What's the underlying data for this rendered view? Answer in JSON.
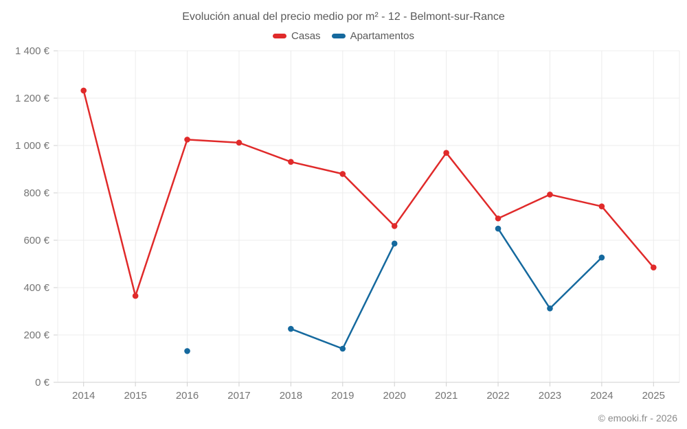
{
  "title": "Evolución anual del precio medio por m² - 12 - Belmont-sur-Rance",
  "footer": "© emooki.fr - 2026",
  "colors": {
    "casas": "#e02a2a",
    "apartamentos": "#15699e",
    "grid": "#ececec",
    "axis": "#cfcfcf",
    "tick_text": "#757575"
  },
  "chart_data": {
    "type": "line",
    "title": "Evolución anual del precio medio por m² - 12 - Belmont-sur-Rance",
    "categories": [
      "2014",
      "2015",
      "2016",
      "2017",
      "2018",
      "2019",
      "2020",
      "2021",
      "2022",
      "2023",
      "2024",
      "2025"
    ],
    "series": [
      {
        "name": "Casas",
        "color": "#e02a2a",
        "values": [
          1232,
          365,
          1025,
          1012,
          931,
          880,
          660,
          969,
          692,
          793,
          743,
          485
        ]
      },
      {
        "name": "Apartamentos",
        "color": "#15699e",
        "values": [
          null,
          null,
          132,
          null,
          226,
          142,
          586,
          null,
          649,
          312,
          527,
          null
        ]
      }
    ],
    "xlabel": "",
    "ylabel": "",
    "ylim": [
      0,
      1400
    ],
    "ytick_step": 200,
    "ytick_suffix": " €",
    "grid": true,
    "legend_position": "top"
  }
}
